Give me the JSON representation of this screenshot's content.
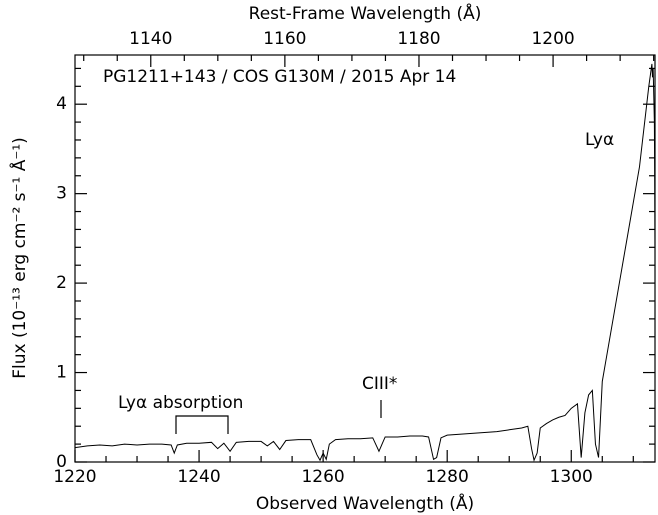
{
  "chart_data": {
    "type": "line",
    "title": "PG1211+143 / COS G130M / 2015 Apr 14",
    "xlabel": "Observed Wavelength (Å)",
    "x2label": "Rest-Frame Wavelength (Å)",
    "ylabel": "Flux (10⁻¹³ erg cm⁻² s⁻¹ Å⁻¹)",
    "annotations": [
      "Lyα",
      "Lyα absorption",
      "CIII*"
    ],
    "color": "#000000",
    "xlim": [
      1220,
      1313.5
    ],
    "xticks": [
      1220,
      1240,
      1260,
      1280,
      1300
    ],
    "xminorticks": [
      1225,
      1230,
      1235,
      1245,
      1250,
      1255,
      1265,
      1270,
      1275,
      1285,
      1290,
      1295,
      1305,
      1310
    ],
    "x2lim": [
      1128.7,
      1215.2
    ],
    "x2ticks": [
      1140,
      1160,
      1180,
      1200
    ],
    "x2minorticks": [
      1130,
      1135,
      1145,
      1150,
      1155,
      1165,
      1170,
      1175,
      1185,
      1190,
      1195,
      1205,
      1210,
      1215
    ],
    "ylim": [
      0,
      4.55
    ],
    "yticks": [
      0,
      1,
      2,
      3,
      4
    ],
    "yminorticks": [
      0.2,
      0.4,
      0.6,
      0.8,
      1.2,
      1.4,
      1.6,
      1.8,
      2.2,
      2.4,
      2.6,
      2.8,
      3.2,
      3.4,
      3.6,
      3.8,
      4.2,
      4.4
    ],
    "x": [
      1220,
      1222,
      1224,
      1226,
      1228,
      1230,
      1232,
      1234,
      1235.5,
      1236,
      1236.5,
      1238,
      1240,
      1242,
      1243,
      1244,
      1245,
      1246,
      1248,
      1250,
      1251,
      1252,
      1253,
      1254,
      1256,
      1258,
      1259,
      1259.5,
      1260,
      1260.5,
      1261,
      1262,
      1264,
      1266,
      1268,
      1269,
      1269.5,
      1270,
      1272,
      1274,
      1276,
      1277,
      1277.8,
      1278.3,
      1279,
      1280,
      1282,
      1284,
      1286,
      1288,
      1290,
      1292,
      1293,
      1293.6,
      1294,
      1294.5,
      1295,
      1296,
      1297,
      1298,
      1299,
      1300,
      1301,
      1301.6,
      1302.2,
      1302.8,
      1303.4,
      1303.9,
      1304.4,
      1305,
      1305.5,
      1306,
      1306.5,
      1307,
      1307.5,
      1308,
      1308.5,
      1309,
      1309.5,
      1310,
      1310.5,
      1311,
      1311.5,
      1312,
      1312.5,
      1313,
      1313.1,
      1313.2,
      1313.3,
      1313.4,
      1313.45,
      1313.5
    ],
    "values": [
      0.16,
      0.18,
      0.19,
      0.18,
      0.2,
      0.19,
      0.2,
      0.2,
      0.19,
      0.1,
      0.19,
      0.21,
      0.21,
      0.22,
      0.15,
      0.21,
      0.12,
      0.22,
      0.23,
      0.23,
      0.18,
      0.23,
      0.14,
      0.24,
      0.25,
      0.25,
      0.08,
      0.02,
      0.1,
      0.03,
      0.2,
      0.25,
      0.26,
      0.26,
      0.27,
      0.12,
      0.2,
      0.28,
      0.28,
      0.29,
      0.29,
      0.28,
      0.03,
      0.05,
      0.27,
      0.3,
      0.31,
      0.32,
      0.33,
      0.34,
      0.36,
      0.38,
      0.4,
      0.15,
      0.02,
      0.1,
      0.38,
      0.43,
      0.47,
      0.5,
      0.52,
      0.6,
      0.65,
      0.05,
      0.55,
      0.75,
      0.8,
      0.2,
      0.05,
      0.9,
      1.1,
      1.3,
      1.5,
      1.7,
      1.9,
      2.1,
      2.3,
      2.5,
      2.7,
      2.9,
      3.1,
      3.3,
      3.6,
      3.9,
      4.2,
      4.45,
      4.3,
      4.4,
      4.1,
      3.8,
      3.2,
      2.4
    ]
  }
}
